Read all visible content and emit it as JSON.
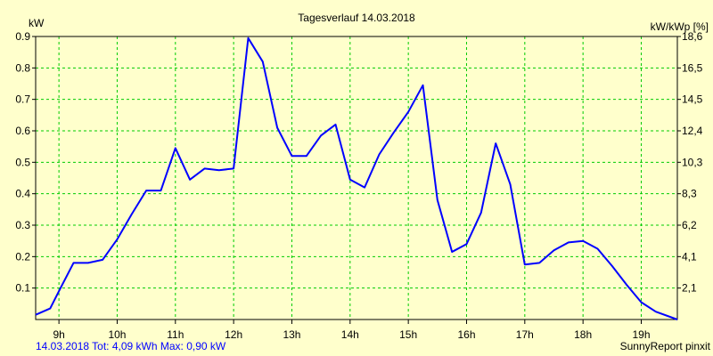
{
  "chart_data": {
    "type": "line",
    "title": "Tagesverlauf 14.03.2018",
    "ylabel_left": "kW",
    "ylabel_right": "kW/kWp [%]",
    "xlim": [
      8.6,
      19.62
    ],
    "ylim": [
      0,
      0.9
    ],
    "x_ticks": [
      {
        "label": "9h",
        "x": 9
      },
      {
        "label": "10h",
        "x": 10
      },
      {
        "label": "11h",
        "x": 11
      },
      {
        "label": "12h",
        "x": 12
      },
      {
        "label": "13h",
        "x": 13
      },
      {
        "label": "14h",
        "x": 14
      },
      {
        "label": "15h",
        "x": 15
      },
      {
        "label": "16h",
        "x": 16
      },
      {
        "label": "17h",
        "x": 17
      },
      {
        "label": "18h",
        "x": 18
      },
      {
        "label": "19h",
        "x": 19
      }
    ],
    "left_ticks": [
      {
        "label": "0.1",
        "y": 0.1
      },
      {
        "label": "0.2",
        "y": 0.2
      },
      {
        "label": "0.3",
        "y": 0.3
      },
      {
        "label": "0.4",
        "y": 0.4
      },
      {
        "label": "0.5",
        "y": 0.5
      },
      {
        "label": "0.6",
        "y": 0.6
      },
      {
        "label": "0.7",
        "y": 0.7
      },
      {
        "label": "0.8",
        "y": 0.8
      },
      {
        "label": "0.9",
        "y": 0.9
      }
    ],
    "right_ticks": [
      {
        "label": "2,1",
        "y": 0.1
      },
      {
        "label": "4,1",
        "y": 0.2
      },
      {
        "label": "6,2",
        "y": 0.3
      },
      {
        "label": "8,3",
        "y": 0.4
      },
      {
        "label": "10,3",
        "y": 0.5
      },
      {
        "label": "12,4",
        "y": 0.6
      },
      {
        "label": "14,5",
        "y": 0.7
      },
      {
        "label": "16,5",
        "y": 0.8
      },
      {
        "label": "18,6",
        "y": 0.9
      }
    ],
    "grid": true,
    "series": [
      {
        "color": "#0000ff",
        "x": [
          8.6,
          8.85,
          9.0,
          9.25,
          9.5,
          9.75,
          10.0,
          10.25,
          10.5,
          10.75,
          11.0,
          11.25,
          11.5,
          11.75,
          12.0,
          12.25,
          12.5,
          12.75,
          13.0,
          13.25,
          13.5,
          13.75,
          14.0,
          14.25,
          14.5,
          14.75,
          15.0,
          15.25,
          15.5,
          15.75,
          16.0,
          16.25,
          16.5,
          16.75,
          17.0,
          17.25,
          17.5,
          17.75,
          18.0,
          18.25,
          18.5,
          18.75,
          19.0,
          19.25,
          19.62
        ],
        "y": [
          0.015,
          0.035,
          0.09,
          0.18,
          0.18,
          0.19,
          0.255,
          0.335,
          0.41,
          0.41,
          0.545,
          0.445,
          0.48,
          0.475,
          0.48,
          0.895,
          0.82,
          0.61,
          0.52,
          0.52,
          0.585,
          0.62,
          0.445,
          0.42,
          0.525,
          0.595,
          0.66,
          0.745,
          0.38,
          0.215,
          0.24,
          0.34,
          0.56,
          0.43,
          0.175,
          0.18,
          0.22,
          0.245,
          0.25,
          0.225,
          0.17,
          0.11,
          0.055,
          0.025,
          0.0
        ]
      }
    ]
  },
  "footer_left": "14.03.2018 Tot: 4,09 kWh Max: 0,90 kW",
  "footer_right": "SunnyReport pinxit",
  "colors": {
    "background": "#ffffcc",
    "grid": "#00cc00",
    "line": "#0000ff"
  }
}
